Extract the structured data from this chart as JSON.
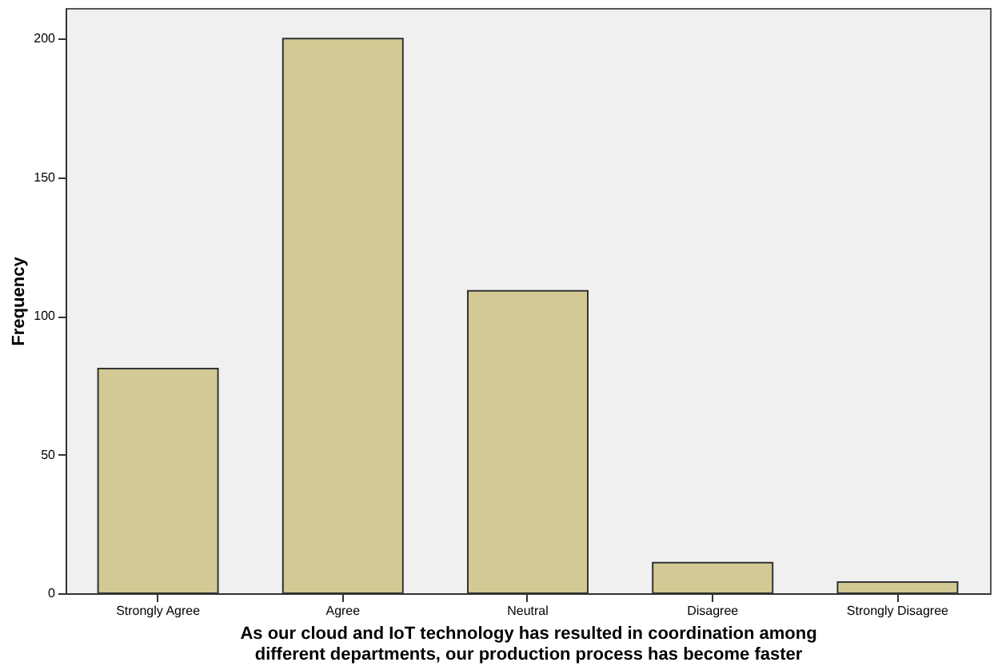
{
  "chart_data": {
    "type": "bar",
    "xlabel": "As our cloud and IoT technology has resulted in coordination among\ndifferent departments, our production process has become faster",
    "ylabel": "Frequency",
    "categories": [
      "Strongly Agree",
      "Agree",
      "Neutral",
      "Disagree",
      "Strongly Disagree"
    ],
    "values": [
      81,
      200,
      109,
      11,
      4
    ],
    "color": "#d2c994",
    "ylim": [
      0,
      211
    ],
    "yticks": [
      0,
      50,
      100,
      150,
      200
    ],
    "grid": false
  }
}
